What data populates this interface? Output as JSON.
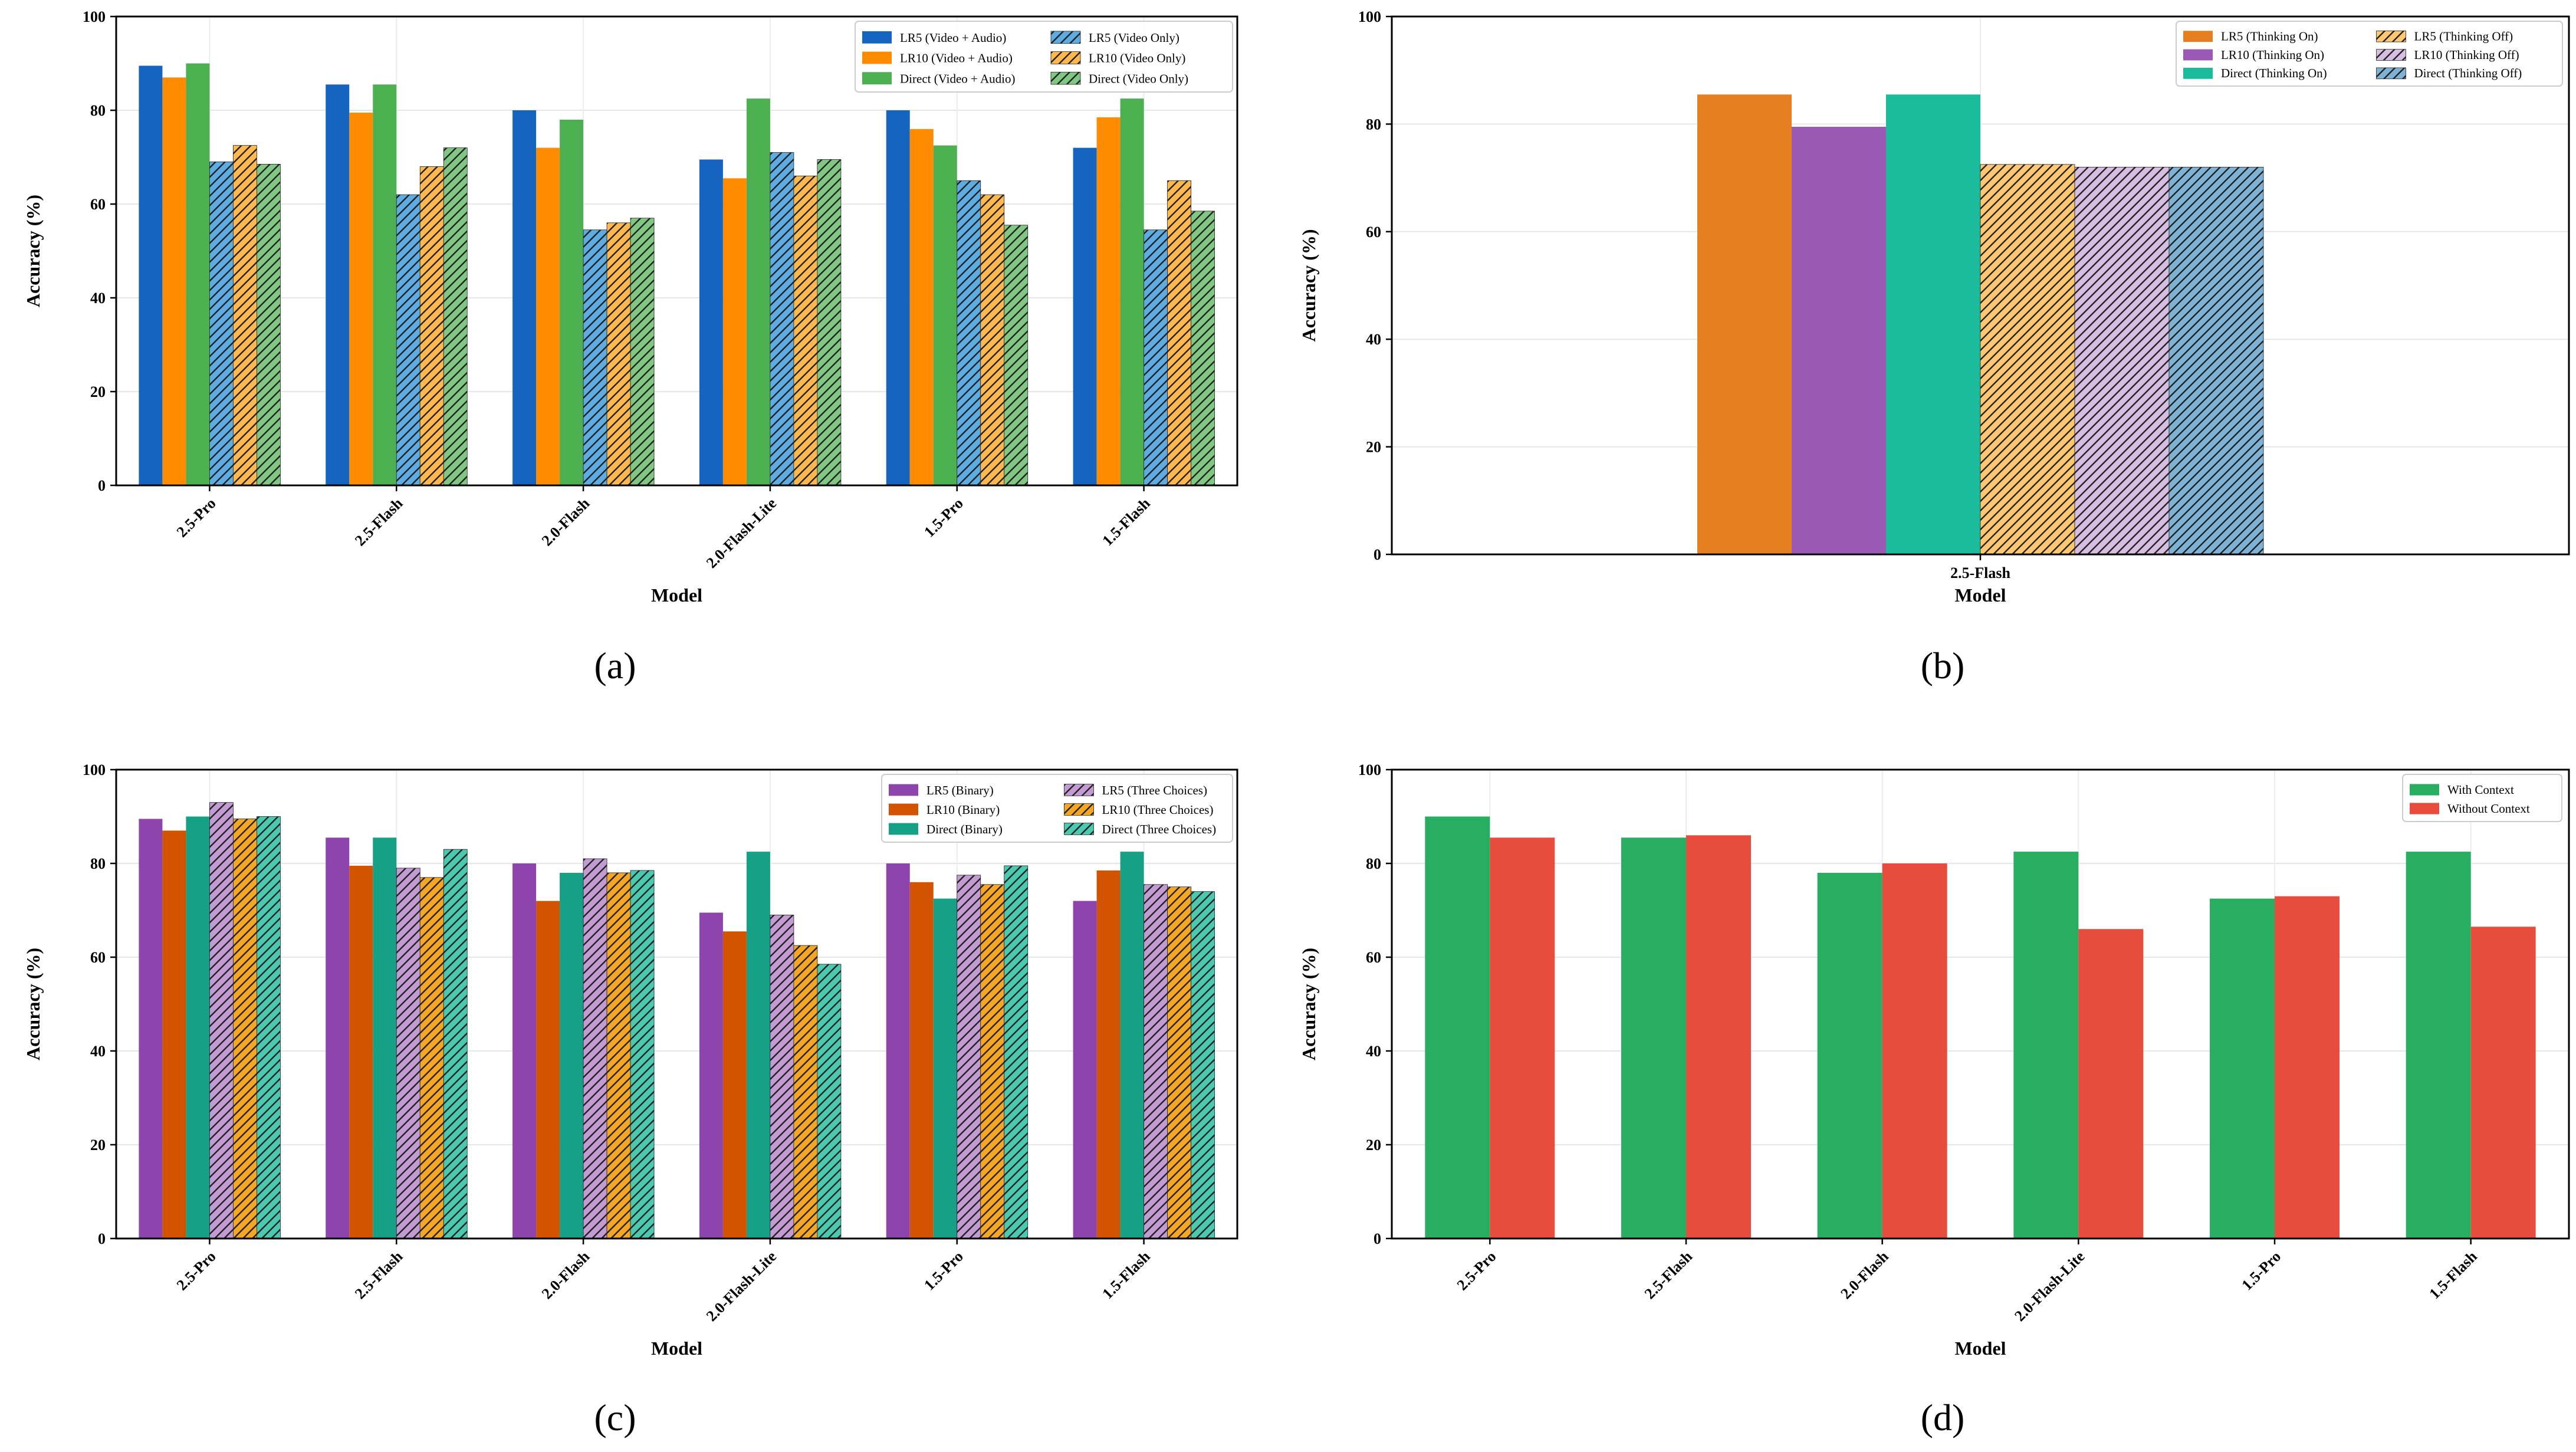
{
  "colors": {
    "blue": "#1565c0",
    "orange": "#ff8c00",
    "green": "#4caf50",
    "lightblue": "#5dade2",
    "lightorange": "#ffb84d",
    "lightgreen": "#81c784",
    "b_orange": "#e67e22",
    "b_purple": "#9b59b6",
    "b_teal": "#1abc9c",
    "b_lorange": "#ffc870",
    "b_lpurple": "#d7bde2",
    "b_lblue": "#7fb3d5",
    "c_purple": "#8e44ad",
    "c_dorange": "#d35400",
    "c_teal": "#16a085",
    "c_lpurple": "#c39bd3",
    "c_lorange": "#f5a623",
    "c_lteal": "#48c9b0",
    "d_green": "#27ae60",
    "d_red": "#e74c3c"
  },
  "chart_data": [
    {
      "id": "a",
      "type": "bar",
      "caption": "(a)",
      "xlabel": "Model",
      "ylabel": "Accuracy (%)",
      "ylim": [
        0,
        100
      ],
      "yticks": [
        0,
        20,
        40,
        60,
        80,
        100
      ],
      "grid": true,
      "legend_position": "top-right",
      "categories": [
        "2.5-Pro",
        "2.5-Flash",
        "2.0-Flash",
        "2.0-Flash-Lite",
        "1.5-Pro",
        "1.5-Flash"
      ],
      "series": [
        {
          "name": "LR5 (Video + Audio)",
          "color": "blue",
          "hatch": false,
          "values": [
            89.5,
            85.5,
            80,
            69.5,
            80,
            72
          ]
        },
        {
          "name": "LR10 (Video + Audio)",
          "color": "orange",
          "hatch": false,
          "values": [
            87,
            79.5,
            72,
            65.5,
            76,
            78.5
          ]
        },
        {
          "name": "Direct (Video + Audio)",
          "color": "green",
          "hatch": false,
          "values": [
            90,
            85.5,
            78,
            82.5,
            72.5,
            82.5
          ]
        },
        {
          "name": "LR5 (Video Only)",
          "color": "lightblue",
          "hatch": true,
          "values": [
            69,
            62,
            54.5,
            71,
            65,
            54.5
          ]
        },
        {
          "name": "LR10 (Video Only)",
          "color": "lightorange",
          "hatch": true,
          "values": [
            72.5,
            68,
            56,
            66,
            62,
            65
          ]
        },
        {
          "name": "Direct (Video Only)",
          "color": "lightgreen",
          "hatch": true,
          "values": [
            68.5,
            72,
            57,
            69.5,
            55.5,
            58.5
          ]
        }
      ]
    },
    {
      "id": "b",
      "type": "bar",
      "caption": "(b)",
      "xlabel": "Model",
      "ylabel": "Accuracy (%)",
      "ylim": [
        0,
        100
      ],
      "yticks": [
        0,
        20,
        40,
        60,
        80,
        100
      ],
      "grid": true,
      "legend_position": "top-right",
      "categories": [
        "2.5-Flash"
      ],
      "series": [
        {
          "name": "LR5 (Thinking On)",
          "color": "b_orange",
          "hatch": false,
          "values": [
            85.5
          ]
        },
        {
          "name": "LR10 (Thinking On)",
          "color": "b_purple",
          "hatch": false,
          "values": [
            79.5
          ]
        },
        {
          "name": "Direct (Thinking On)",
          "color": "b_teal",
          "hatch": false,
          "values": [
            85.5
          ]
        },
        {
          "name": "LR5 (Thinking Off)",
          "color": "b_lorange",
          "hatch": true,
          "values": [
            72.5
          ]
        },
        {
          "name": "LR10 (Thinking Off)",
          "color": "b_lpurple",
          "hatch": true,
          "values": [
            72
          ]
        },
        {
          "name": "Direct (Thinking Off)",
          "color": "b_lblue",
          "hatch": true,
          "values": [
            72
          ]
        }
      ]
    },
    {
      "id": "c",
      "type": "bar",
      "caption": "(c)",
      "xlabel": "Model",
      "ylabel": "Accuracy (%)",
      "ylim": [
        0,
        100
      ],
      "yticks": [
        0,
        20,
        40,
        60,
        80,
        100
      ],
      "grid": true,
      "legend_position": "top-right",
      "categories": [
        "2.5-Pro",
        "2.5-Flash",
        "2.0-Flash",
        "2.0-Flash-Lite",
        "1.5-Pro",
        "1.5-Flash"
      ],
      "series": [
        {
          "name": "LR5 (Binary)",
          "color": "c_purple",
          "hatch": false,
          "values": [
            89.5,
            85.5,
            80,
            69.5,
            80,
            72
          ]
        },
        {
          "name": "LR10 (Binary)",
          "color": "c_dorange",
          "hatch": false,
          "values": [
            87,
            79.5,
            72,
            65.5,
            76,
            78.5
          ]
        },
        {
          "name": "Direct (Binary)",
          "color": "c_teal",
          "hatch": false,
          "values": [
            90,
            85.5,
            78,
            82.5,
            72.5,
            82.5
          ]
        },
        {
          "name": "LR5 (Three Choices)",
          "color": "c_lpurple",
          "hatch": true,
          "values": [
            93,
            79,
            81,
            69,
            77.5,
            75.5
          ]
        },
        {
          "name": "LR10 (Three Choices)",
          "color": "c_lorange",
          "hatch": true,
          "values": [
            89.5,
            77,
            78,
            62.5,
            75.5,
            75
          ]
        },
        {
          "name": "Direct (Three Choices)",
          "color": "c_lteal",
          "hatch": true,
          "values": [
            90,
            83,
            78.5,
            58.5,
            79.5,
            74
          ]
        }
      ]
    },
    {
      "id": "d",
      "type": "bar",
      "caption": "(d)",
      "xlabel": "Model",
      "ylabel": "Accuracy (%)",
      "ylim": [
        0,
        100
      ],
      "yticks": [
        0,
        20,
        40,
        60,
        80,
        100
      ],
      "grid": true,
      "legend_position": "top-right",
      "categories": [
        "2.5-Pro",
        "2.5-Flash",
        "2.0-Flash",
        "2.0-Flash-Lite",
        "1.5-Pro",
        "1.5-Flash"
      ],
      "series": [
        {
          "name": "With Context",
          "color": "d_green",
          "hatch": false,
          "values": [
            90,
            85.5,
            78,
            82.5,
            72.5,
            82.5
          ]
        },
        {
          "name": "Without Context",
          "color": "d_red",
          "hatch": false,
          "values": [
            85.5,
            86,
            80,
            66,
            73,
            66.5
          ]
        }
      ]
    }
  ]
}
